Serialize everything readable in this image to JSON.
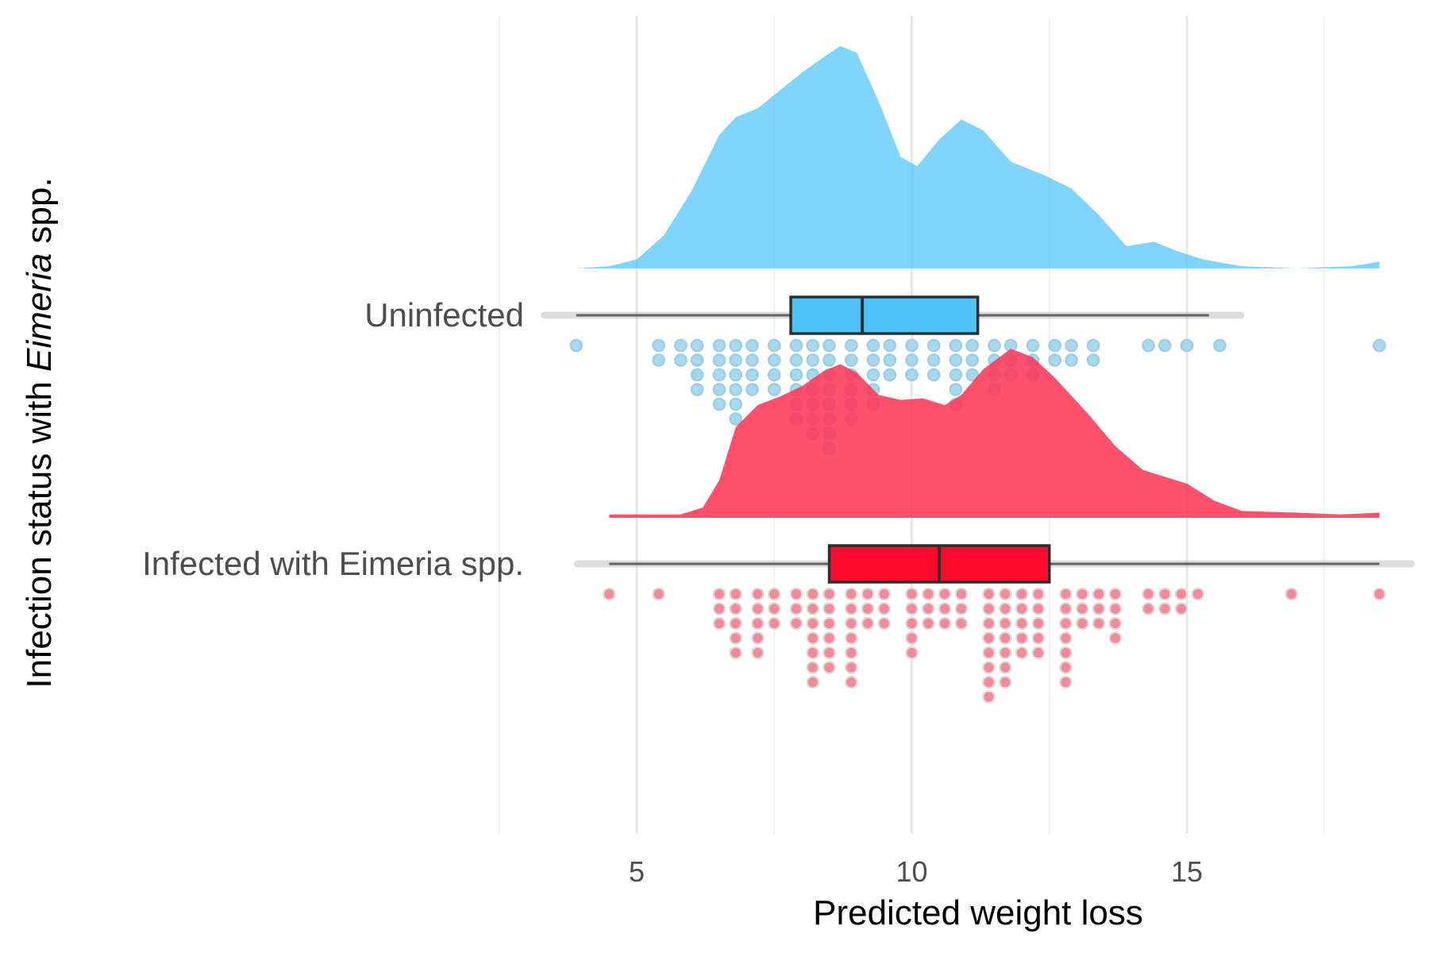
{
  "chart_data": {
    "type": "raincloud",
    "xlabel": "Predicted weight loss",
    "ylabel_parts": [
      "Infection status with ",
      "Eimeria",
      " spp."
    ],
    "x_ticks": [
      5,
      10,
      15
    ],
    "xlim": [
      3.9,
      18.6
    ],
    "grid": true,
    "legend": "none",
    "groups": [
      {
        "name": "Uninfected",
        "color": "#4fc3f7",
        "box_color": "#4fc3f7",
        "point_fill": "#a6d8ee",
        "point_stroke": "#9ecbe0",
        "box": {
          "whisker_low": 3.9,
          "q1": 7.8,
          "median": 9.1,
          "q3": 11.2,
          "whisker_high": 15.4
        },
        "density": [
          [
            3.9,
            0.0
          ],
          [
            4.5,
            0.01
          ],
          [
            5.0,
            0.04
          ],
          [
            5.5,
            0.15
          ],
          [
            6.0,
            0.35
          ],
          [
            6.5,
            0.6
          ],
          [
            6.8,
            0.68
          ],
          [
            7.2,
            0.72
          ],
          [
            7.6,
            0.8
          ],
          [
            8.0,
            0.88
          ],
          [
            8.4,
            0.95
          ],
          [
            8.7,
            1.0
          ],
          [
            9.0,
            0.97
          ],
          [
            9.4,
            0.75
          ],
          [
            9.8,
            0.5
          ],
          [
            10.1,
            0.46
          ],
          [
            10.5,
            0.58
          ],
          [
            10.9,
            0.67
          ],
          [
            11.3,
            0.62
          ],
          [
            11.8,
            0.48
          ],
          [
            12.4,
            0.42
          ],
          [
            12.9,
            0.36
          ],
          [
            13.4,
            0.24
          ],
          [
            13.9,
            0.1
          ],
          [
            14.4,
            0.12
          ],
          [
            14.8,
            0.08
          ],
          [
            15.3,
            0.04
          ],
          [
            16.0,
            0.01
          ],
          [
            17.0,
            0.0
          ],
          [
            18.0,
            0.01
          ],
          [
            18.5,
            0.03
          ]
        ],
        "points": [
          [
            3.9,
            1
          ],
          [
            5.4,
            2
          ],
          [
            5.8,
            2
          ],
          [
            6.1,
            4
          ],
          [
            6.5,
            5
          ],
          [
            6.8,
            6
          ],
          [
            7.1,
            4
          ],
          [
            7.5,
            4
          ],
          [
            7.9,
            6
          ],
          [
            8.2,
            7
          ],
          [
            8.5,
            8
          ],
          [
            8.9,
            6
          ],
          [
            9.3,
            5
          ],
          [
            9.6,
            3
          ],
          [
            10.0,
            3
          ],
          [
            10.4,
            3
          ],
          [
            10.8,
            5
          ],
          [
            11.1,
            3
          ],
          [
            11.5,
            4
          ],
          [
            11.8,
            3
          ],
          [
            12.2,
            3
          ],
          [
            12.6,
            2
          ],
          [
            12.9,
            2
          ],
          [
            13.3,
            2
          ],
          [
            14.3,
            1
          ],
          [
            14.6,
            1
          ],
          [
            15.0,
            1
          ],
          [
            15.6,
            1
          ],
          [
            18.5,
            1
          ]
        ]
      },
      {
        "name": "Infected with Eimeria spp.",
        "color": "#ff3355",
        "box_color": "#ff0a2f",
        "point_fill": "#f28a9a",
        "point_stroke": "#dcdcdc",
        "box": {
          "whisker_low": 4.5,
          "q1": 8.5,
          "median": 10.5,
          "q3": 12.5,
          "whisker_high": 18.5
        },
        "density": [
          [
            4.5,
            0.02
          ],
          [
            5.2,
            0.02
          ],
          [
            5.8,
            0.02
          ],
          [
            6.2,
            0.06
          ],
          [
            6.5,
            0.22
          ],
          [
            6.8,
            0.53
          ],
          [
            7.2,
            0.66
          ],
          [
            7.6,
            0.71
          ],
          [
            8.0,
            0.77
          ],
          [
            8.4,
            0.86
          ],
          [
            8.7,
            0.9
          ],
          [
            9.0,
            0.85
          ],
          [
            9.4,
            0.72
          ],
          [
            9.8,
            0.69
          ],
          [
            10.2,
            0.7
          ],
          [
            10.6,
            0.66
          ],
          [
            10.9,
            0.72
          ],
          [
            11.3,
            0.87
          ],
          [
            11.8,
            0.99
          ],
          [
            12.2,
            0.94
          ],
          [
            12.6,
            0.82
          ],
          [
            13.2,
            0.61
          ],
          [
            13.7,
            0.42
          ],
          [
            14.2,
            0.28
          ],
          [
            14.6,
            0.24
          ],
          [
            15.0,
            0.2
          ],
          [
            15.5,
            0.1
          ],
          [
            16.0,
            0.04
          ],
          [
            17.0,
            0.03
          ],
          [
            17.8,
            0.02
          ],
          [
            18.5,
            0.03
          ]
        ],
        "points": [
          [
            4.5,
            1
          ],
          [
            5.4,
            1
          ],
          [
            6.5,
            3
          ],
          [
            6.8,
            5
          ],
          [
            7.2,
            5
          ],
          [
            7.5,
            3
          ],
          [
            7.9,
            3
          ],
          [
            8.2,
            7
          ],
          [
            8.5,
            6
          ],
          [
            8.9,
            7
          ],
          [
            9.2,
            3
          ],
          [
            9.5,
            3
          ],
          [
            10.0,
            5
          ],
          [
            10.3,
            3
          ],
          [
            10.6,
            3
          ],
          [
            10.9,
            3
          ],
          [
            11.4,
            8
          ],
          [
            11.7,
            7
          ],
          [
            12.0,
            5
          ],
          [
            12.3,
            5
          ],
          [
            12.8,
            7
          ],
          [
            13.1,
            3
          ],
          [
            13.4,
            3
          ],
          [
            13.7,
            4
          ],
          [
            14.3,
            2
          ],
          [
            14.6,
            2
          ],
          [
            14.9,
            2
          ],
          [
            15.2,
            1
          ],
          [
            16.9,
            1
          ],
          [
            18.5,
            1
          ]
        ]
      }
    ]
  }
}
